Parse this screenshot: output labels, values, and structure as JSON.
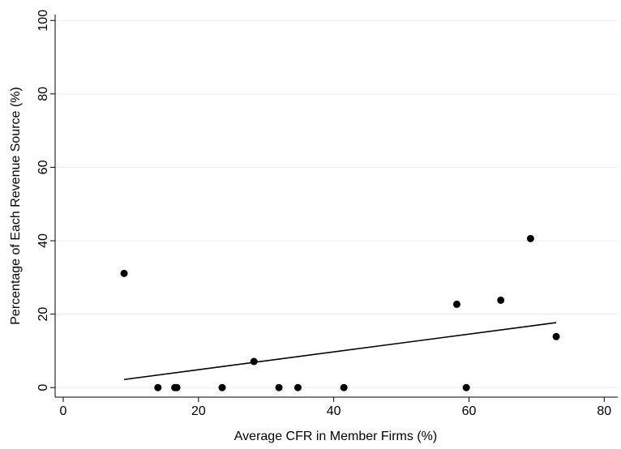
{
  "chart_data": {
    "type": "scatter",
    "x_label": "Average CFR in Member Firms (%)",
    "y_label": "Percentage of Each Revenue Source (%)",
    "x": [
      9.0,
      14.0,
      16.5,
      16.8,
      23.5,
      28.2,
      31.9,
      34.7,
      41.5,
      58.2,
      59.6,
      64.7,
      69.1,
      72.9
    ],
    "values": [
      31.1,
      0,
      0,
      0,
      0,
      7.1,
      0,
      0,
      0,
      22.7,
      0,
      23.8,
      40.6,
      13.9
    ],
    "color": "#000000",
    "fit": {
      "x": [
        9.0,
        72.9
      ],
      "values": [
        2.2,
        17.7
      ],
      "color": "#000000"
    },
    "xlim": [
      -1.2,
      82
    ],
    "xticks": [
      0,
      20,
      40,
      60,
      80
    ],
    "ylim": [
      -2.6,
      101.6
    ],
    "yticks": [
      0,
      20,
      40,
      60,
      80,
      100
    ],
    "grid": true
  }
}
